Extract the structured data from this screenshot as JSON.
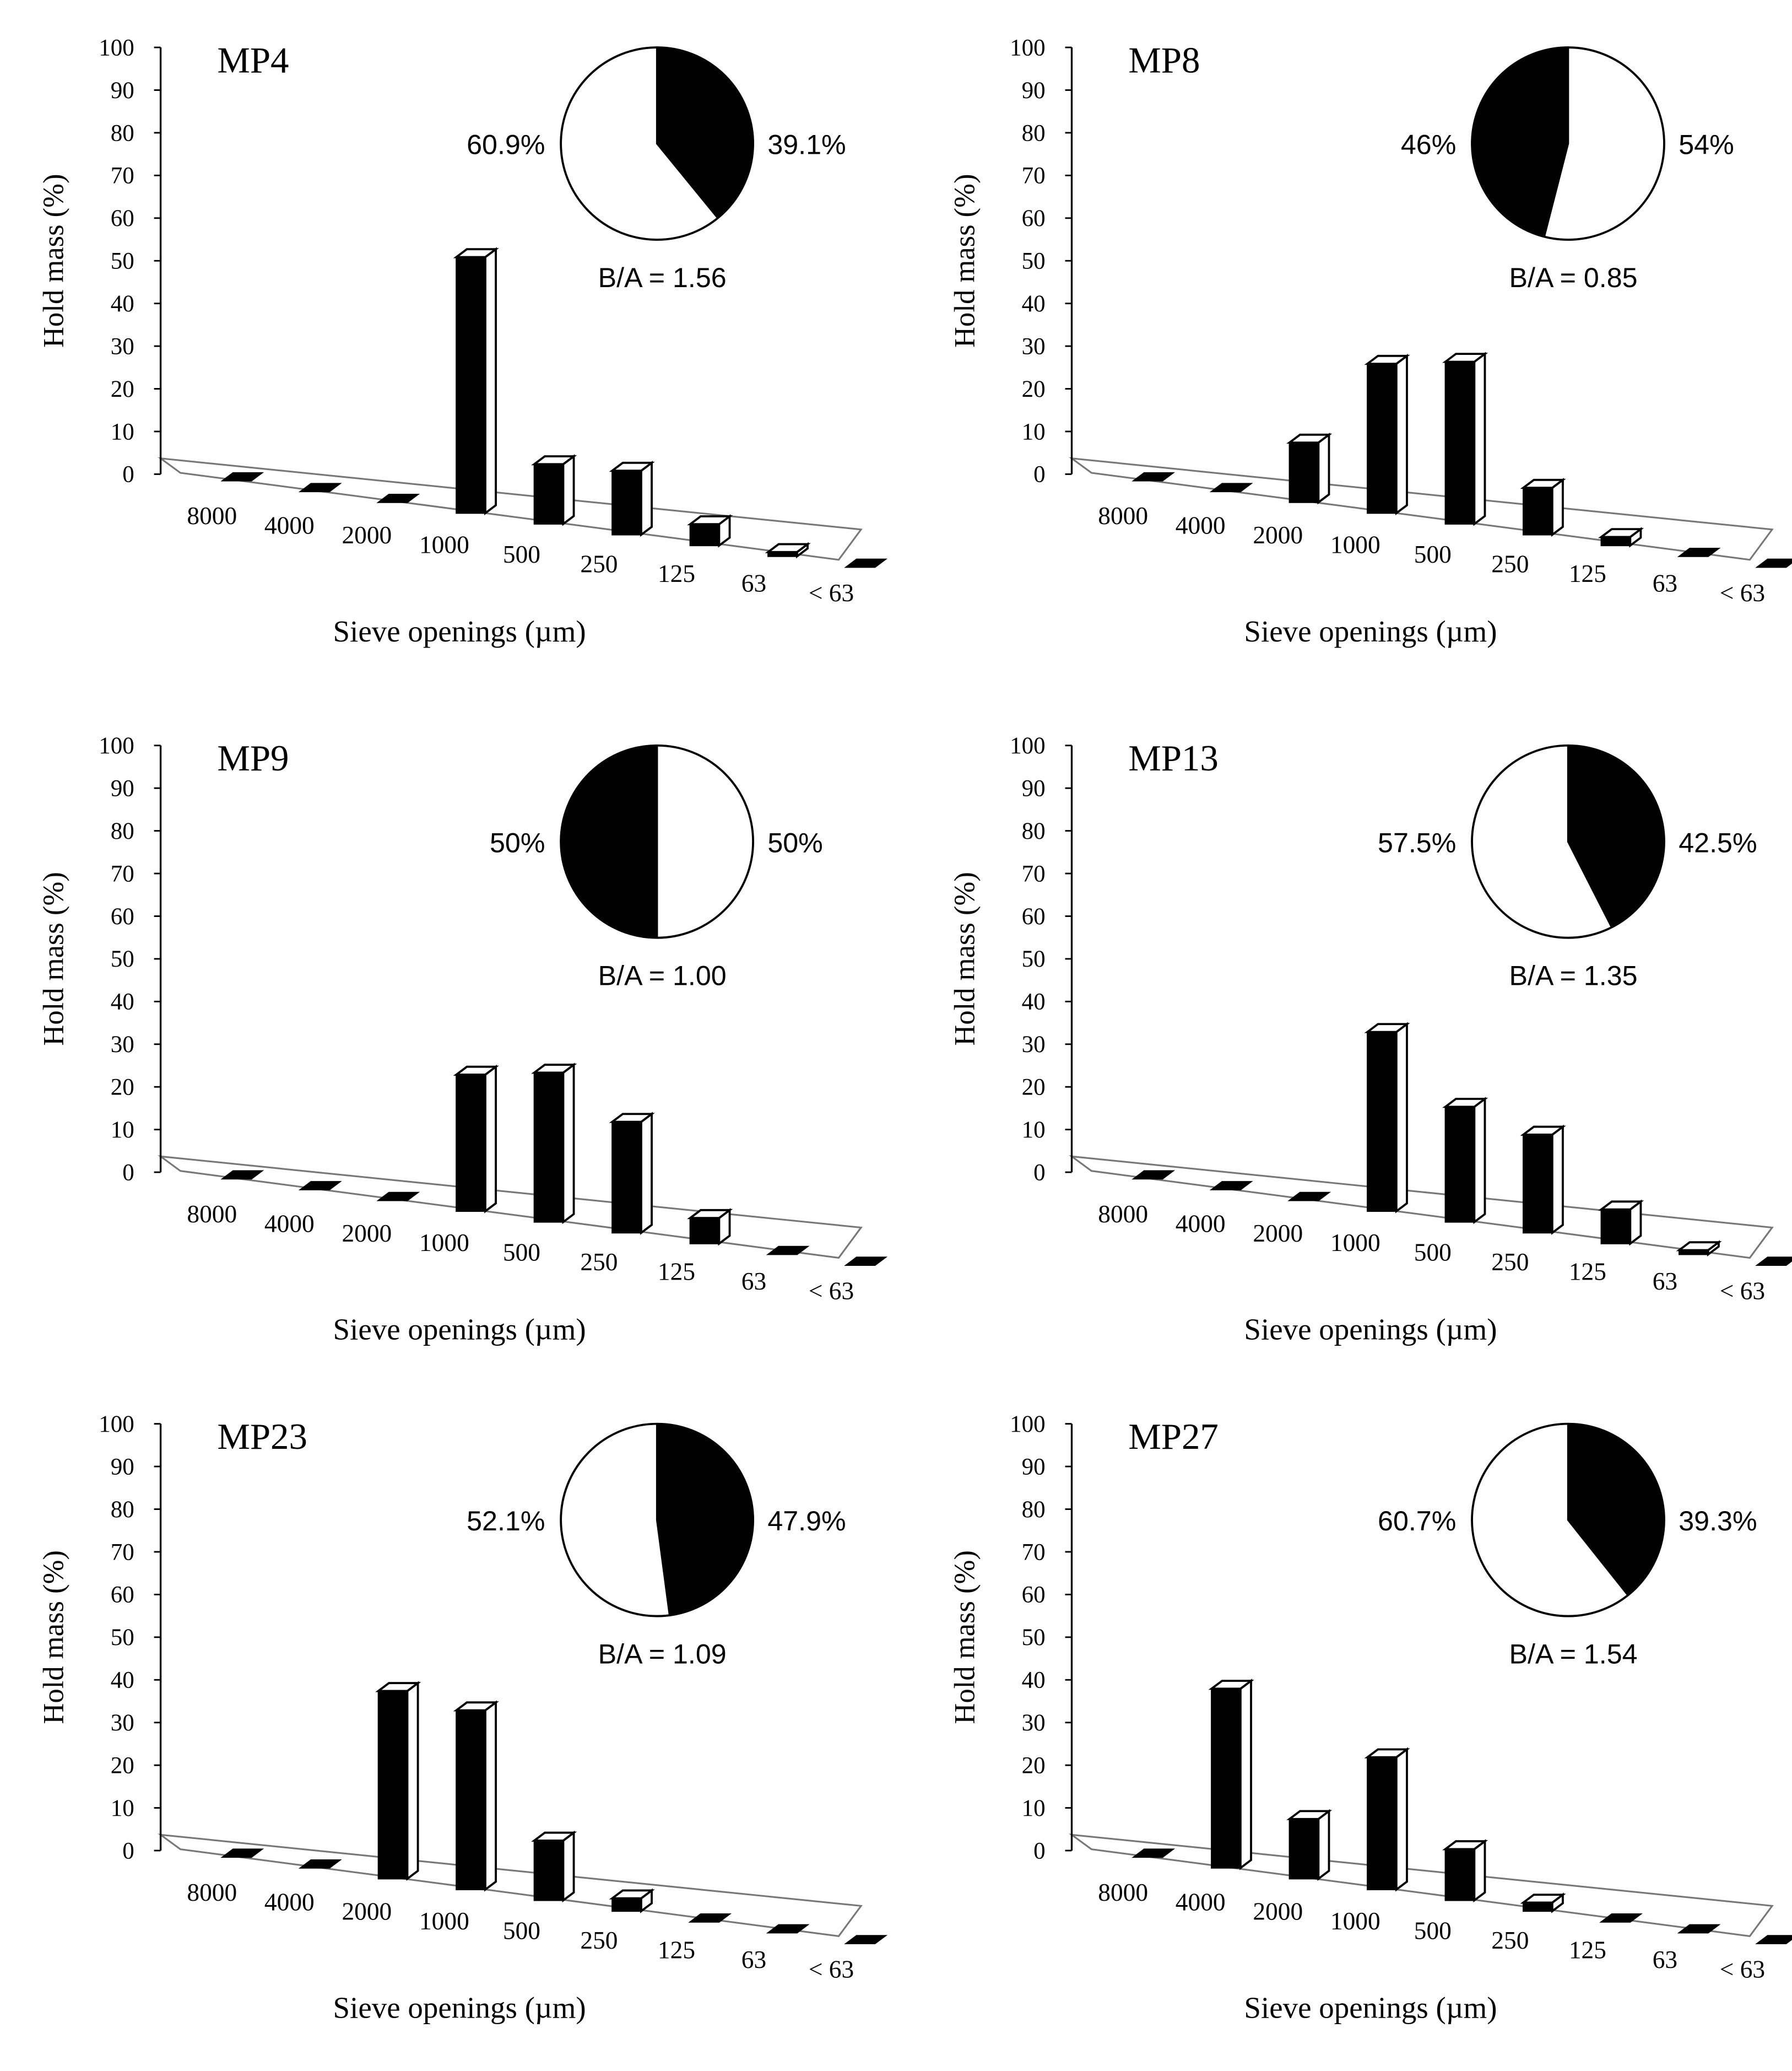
{
  "figure": {
    "colors": {
      "bar": "#000000",
      "face": "#ffffff",
      "floor": "#777777",
      "axis": "#000000"
    }
  },
  "chart_data": [
    {
      "type": "bar",
      "title": "MP4",
      "categories": [
        "8000",
        "4000",
        "2000",
        "1000",
        "500",
        "250",
        "125",
        "63",
        "< 63"
      ],
      "values": [
        0,
        0,
        0,
        60,
        14,
        15,
        5,
        1,
        0
      ],
      "xlabel": "Sieve openings (µm)",
      "ylabel": "Hold mass (%)",
      "yticks": [
        "0",
        "10",
        "20",
        "30",
        "40",
        "50",
        "60",
        "70",
        "80",
        "90",
        "100"
      ],
      "ylim": [
        0,
        100
      ],
      "pie": {
        "labels": [
          "39.1%",
          "60.9%"
        ],
        "values": [
          39.1,
          60.9
        ],
        "colors": [
          "#000000",
          "#ffffff"
        ],
        "ratio_label": "B/A = 1.56"
      }
    },
    {
      "type": "bar",
      "title": "MP8",
      "categories": [
        "8000",
        "4000",
        "2000",
        "1000",
        "500",
        "250",
        "125",
        "63",
        "< 63"
      ],
      "values": [
        0,
        0,
        14,
        35,
        38,
        11,
        2,
        0,
        0
      ],
      "xlabel": "Sieve openings (µm)",
      "ylabel": "Hold mass (%)",
      "yticks": [
        "0",
        "10",
        "20",
        "30",
        "40",
        "50",
        "60",
        "70",
        "80",
        "90",
        "100"
      ],
      "ylim": [
        0,
        100
      ],
      "pie": {
        "labels": [
          "54%",
          "46%"
        ],
        "values": [
          54,
          46
        ],
        "colors": [
          "#ffffff",
          "#000000"
        ],
        "ratio_label": "B/A = 0.85"
      }
    },
    {
      "type": "bar",
      "title": "MP9",
      "categories": [
        "8000",
        "4000",
        "2000",
        "1000",
        "500",
        "250",
        "125",
        "63",
        "< 63"
      ],
      "values": [
        0,
        0,
        0,
        32,
        35,
        26,
        6,
        0,
        0
      ],
      "xlabel": "Sieve openings (µm)",
      "ylabel": "Hold mass (%)",
      "yticks": [
        "0",
        "10",
        "20",
        "30",
        "40",
        "50",
        "60",
        "70",
        "80",
        "90",
        "100"
      ],
      "ylim": [
        0,
        100
      ],
      "pie": {
        "labels": [
          "50%",
          "50%"
        ],
        "values": [
          50,
          50
        ],
        "colors": [
          "#ffffff",
          "#000000"
        ],
        "ratio_label": "B/A = 1.00"
      }
    },
    {
      "type": "bar",
      "title": "MP13",
      "categories": [
        "8000",
        "4000",
        "2000",
        "1000",
        "500",
        "250",
        "125",
        "63",
        "< 63"
      ],
      "values": [
        0,
        0,
        0,
        42,
        27,
        23,
        8,
        1,
        0
      ],
      "xlabel": "Sieve openings (µm)",
      "ylabel": "Hold mass (%)",
      "yticks": [
        "0",
        "10",
        "20",
        "30",
        "40",
        "50",
        "60",
        "70",
        "80",
        "90",
        "100"
      ],
      "ylim": [
        0,
        100
      ],
      "pie": {
        "labels": [
          "42.5%",
          "57.5%"
        ],
        "values": [
          42.5,
          57.5
        ],
        "colors": [
          "#000000",
          "#ffffff"
        ],
        "ratio_label": "B/A = 1.35"
      }
    },
    {
      "type": "bar",
      "title": "MP23",
      "categories": [
        "8000",
        "4000",
        "2000",
        "1000",
        "500",
        "250",
        "125",
        "63",
        "< 63"
      ],
      "values": [
        0,
        0,
        44,
        42,
        14,
        3,
        0,
        0,
        0
      ],
      "xlabel": "Sieve openings (µm)",
      "ylabel": "Hold mass (%)",
      "yticks": [
        "0",
        "10",
        "20",
        "30",
        "40",
        "50",
        "60",
        "70",
        "80",
        "90",
        "100"
      ],
      "ylim": [
        0,
        100
      ],
      "pie": {
        "labels": [
          "47.9%",
          "52.1%"
        ],
        "values": [
          47.9,
          52.1
        ],
        "colors": [
          "#000000",
          "#ffffff"
        ],
        "ratio_label": "B/A = 1.09"
      }
    },
    {
      "type": "bar",
      "title": "MP27",
      "categories": [
        "8000",
        "4000",
        "2000",
        "1000",
        "500",
        "250",
        "125",
        "63",
        "< 63"
      ],
      "values": [
        0,
        42,
        14,
        31,
        12,
        2,
        0,
        0,
        0
      ],
      "xlabel": "Sieve openings (µm)",
      "ylabel": "Hold mass (%)",
      "yticks": [
        "0",
        "10",
        "20",
        "30",
        "40",
        "50",
        "60",
        "70",
        "80",
        "90",
        "100"
      ],
      "ylim": [
        0,
        100
      ],
      "pie": {
        "labels": [
          "39.3%",
          "60.7%"
        ],
        "values": [
          39.3,
          60.7
        ],
        "colors": [
          "#000000",
          "#ffffff"
        ],
        "ratio_label": "B/A = 1.54"
      }
    }
  ]
}
